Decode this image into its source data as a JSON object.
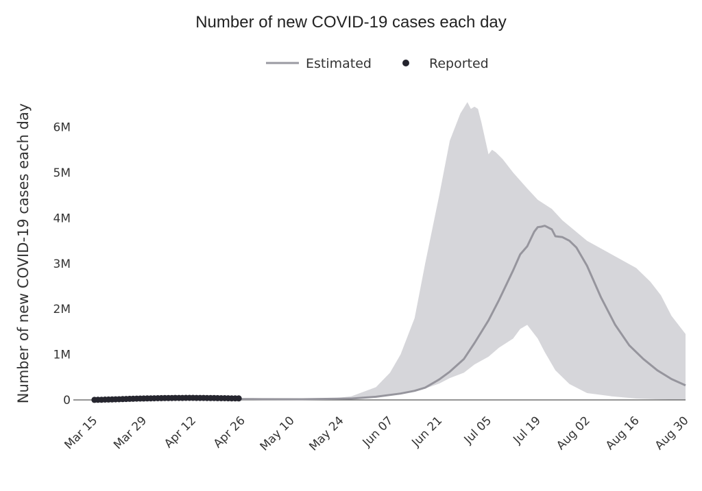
{
  "chart_data": {
    "type": "line",
    "title": "Number of new COVID-19 cases each day",
    "xlabel": "",
    "ylabel": "Number of new COVID-19 cases each day",
    "x_start": "2020-03-15",
    "xlim": [
      "2020-03-09",
      "2020-08-30"
    ],
    "ylim": [
      -200000,
      6700000
    ],
    "x_ticks": [
      "Mar 15",
      "Mar 29",
      "Apr 12",
      "Apr 26",
      "May 10",
      "May 24",
      "Jun 07",
      "Jun 21",
      "Jul 05",
      "Jul 19",
      "Aug 02",
      "Aug 16",
      "Aug 30"
    ],
    "y_ticks": [
      {
        "value": 0,
        "label": "0"
      },
      {
        "value": 1000000,
        "label": "1M"
      },
      {
        "value": 2000000,
        "label": "2M"
      },
      {
        "value": 3000000,
        "label": "3M"
      },
      {
        "value": 4000000,
        "label": "4M"
      },
      {
        "value": 5000000,
        "label": "5M"
      },
      {
        "value": 6000000,
        "label": "6M"
      }
    ],
    "legend": {
      "position": "top-center",
      "items": [
        {
          "label": "Estimated",
          "style": "line",
          "color": "#9a9aa2"
        },
        {
          "label": "Reported",
          "style": "marker",
          "color": "#23232d"
        }
      ]
    },
    "grid": false,
    "colors": {
      "estimated": "#96959d",
      "band": "#d6d6da",
      "reported": "#26262f",
      "zero_line": "#555555"
    },
    "series": [
      {
        "name": "Estimated",
        "x": [
          "2020-03-18",
          "2020-04-01",
          "2020-04-15",
          "2020-04-29",
          "2020-05-13",
          "2020-05-27",
          "2020-06-03",
          "2020-06-10",
          "2020-06-14",
          "2020-06-17",
          "2020-06-21",
          "2020-06-24",
          "2020-06-28",
          "2020-07-01",
          "2020-07-05",
          "2020-07-08",
          "2020-07-12",
          "2020-07-14",
          "2020-07-16",
          "2020-07-17",
          "2020-07-18",
          "2020-07-19",
          "2020-07-20",
          "2020-07-21",
          "2020-07-23",
          "2020-07-24",
          "2020-07-26",
          "2020-07-28",
          "2020-07-30",
          "2020-08-02",
          "2020-08-06",
          "2020-08-10",
          "2020-08-14",
          "2020-08-18",
          "2020-08-22",
          "2020-08-26",
          "2020-08-30"
        ],
        "values": [
          15000,
          20000,
          20000,
          18000,
          15000,
          30000,
          70000,
          140000,
          200000,
          270000,
          450000,
          620000,
          900000,
          1250000,
          1750000,
          2200000,
          2850000,
          3200000,
          3380000,
          3540000,
          3700000,
          3800000,
          3810000,
          3830000,
          3750000,
          3600000,
          3580000,
          3500000,
          3350000,
          2950000,
          2250000,
          1650000,
          1200000,
          900000,
          650000,
          460000,
          320000
        ]
      },
      {
        "name": "Estimated upper bound",
        "x": [
          "2020-03-18",
          "2020-04-29",
          "2020-05-20",
          "2020-05-27",
          "2020-06-03",
          "2020-06-07",
          "2020-06-10",
          "2020-06-14",
          "2020-06-17",
          "2020-06-21",
          "2020-06-24",
          "2020-06-27",
          "2020-06-29",
          "2020-06-30",
          "2020-07-01",
          "2020-07-02",
          "2020-07-03",
          "2020-07-05",
          "2020-07-06",
          "2020-07-07",
          "2020-07-09",
          "2020-07-12",
          "2020-07-16",
          "2020-07-19",
          "2020-07-23",
          "2020-07-26",
          "2020-08-02",
          "2020-08-09",
          "2020-08-16",
          "2020-08-20",
          "2020-08-23",
          "2020-08-26",
          "2020-08-30"
        ],
        "values": [
          15000,
          20000,
          20000,
          80000,
          280000,
          600000,
          1000000,
          1800000,
          3000000,
          4500000,
          5700000,
          6300000,
          6550000,
          6400000,
          6450000,
          6400000,
          6100000,
          5400000,
          5500000,
          5450000,
          5300000,
          5000000,
          4650000,
          4400000,
          4200000,
          3950000,
          3500000,
          3200000,
          2900000,
          2600000,
          2300000,
          1850000,
          1450000
        ]
      },
      {
        "name": "Estimated lower bound",
        "x": [
          "2020-08-30",
          "2020-08-23",
          "2020-08-16",
          "2020-08-09",
          "2020-08-02",
          "2020-07-28",
          "2020-07-24",
          "2020-07-21",
          "2020-07-19",
          "2020-07-18",
          "2020-07-17",
          "2020-07-16",
          "2020-07-14",
          "2020-07-12",
          "2020-07-08",
          "2020-07-05",
          "2020-07-01",
          "2020-06-28",
          "2020-06-24",
          "2020-06-21",
          "2020-06-17",
          "2020-06-14",
          "2020-06-10",
          "2020-06-03",
          "2020-05-27",
          "2020-04-29",
          "2020-03-18"
        ],
        "values": [
          0,
          10000,
          30000,
          80000,
          150000,
          350000,
          650000,
          1050000,
          1350000,
          1450000,
          1550000,
          1650000,
          1560000,
          1350000,
          1150000,
          950000,
          780000,
          600000,
          480000,
          360000,
          250000,
          200000,
          130000,
          60000,
          25000,
          20000,
          15000
        ]
      },
      {
        "name": "Reported",
        "x": [
          "2020-03-15",
          "2020-03-16",
          "2020-03-17",
          "2020-03-18",
          "2020-03-19",
          "2020-03-20",
          "2020-03-21",
          "2020-03-22",
          "2020-03-23",
          "2020-03-24",
          "2020-03-25",
          "2020-03-26",
          "2020-03-27",
          "2020-03-28",
          "2020-03-29",
          "2020-03-30",
          "2020-03-31",
          "2020-04-01",
          "2020-04-02",
          "2020-04-03",
          "2020-04-04",
          "2020-04-05",
          "2020-04-06",
          "2020-04-07",
          "2020-04-08",
          "2020-04-09",
          "2020-04-10",
          "2020-04-11",
          "2020-04-12",
          "2020-04-13",
          "2020-04-14",
          "2020-04-15",
          "2020-04-16",
          "2020-04-17",
          "2020-04-18",
          "2020-04-19",
          "2020-04-20",
          "2020-04-21",
          "2020-04-22",
          "2020-04-23",
          "2020-04-24",
          "2020-04-25"
        ],
        "values": [
          2000,
          3000,
          5000,
          7000,
          9000,
          11000,
          13000,
          15000,
          18000,
          21000,
          24000,
          26000,
          28000,
          30000,
          31000,
          33000,
          34000,
          36000,
          38000,
          39000,
          40000,
          41000,
          42000,
          43000,
          44000,
          44000,
          45000,
          45000,
          45000,
          44000,
          44000,
          43000,
          42000,
          41000,
          40000,
          39000,
          38000,
          37000,
          36000,
          35000,
          34000,
          33000
        ]
      }
    ]
  }
}
